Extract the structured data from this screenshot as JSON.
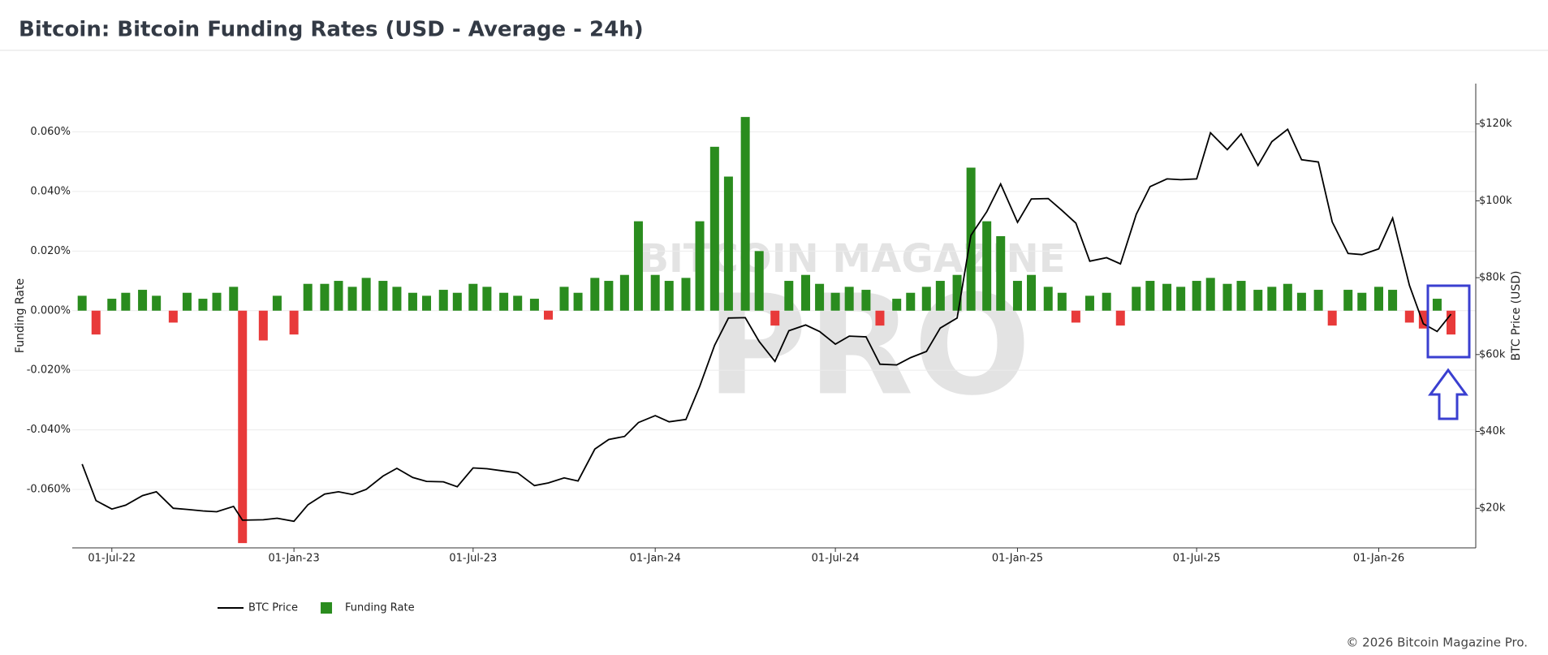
{
  "chart_data": {
    "type": "bar-line",
    "title": "Bitcoin: Bitcoin Funding Rates (USD - Average - 24h)",
    "ylabel": "Funding Rate",
    "y2label": "BTC Price (USD)",
    "watermark": [
      "BITCOIN MAGAZINE",
      "PRO"
    ],
    "copyright": "© 2026 Bitcoin Magazine Pro.",
    "grid": true,
    "legend": "bottom-left",
    "xlim": [
      "2022-05-22",
      "2026-04-09"
    ],
    "xticks": [
      {
        "value": "2022-07-01",
        "label": "01-Jul-22"
      },
      {
        "value": "2023-01-01",
        "label": "01-Jan-23"
      },
      {
        "value": "2023-07-01",
        "label": "01-Jul-23"
      },
      {
        "value": "2024-01-01",
        "label": "01-Jan-24"
      },
      {
        "value": "2024-07-01",
        "label": "01-Jul-24"
      },
      {
        "value": "2025-01-01",
        "label": "01-Jan-25"
      },
      {
        "value": "2025-07-01",
        "label": "01-Jul-25"
      },
      {
        "value": "2026-01-01",
        "label": "01-Jan-26"
      }
    ],
    "ylim": [
      -0.0796,
      0.0762
    ],
    "yticks": [
      {
        "value": -0.06,
        "label": "-0.060%"
      },
      {
        "value": -0.04,
        "label": "-0.040%"
      },
      {
        "value": -0.02,
        "label": "-0.020%"
      },
      {
        "value": 0,
        "label": "0.000%"
      },
      {
        "value": 0.02,
        "label": "0.020%"
      },
      {
        "value": 0.04,
        "label": "0.040%"
      },
      {
        "value": 0.06,
        "label": "0.060%"
      }
    ],
    "y2lim": [
      9700,
      130500
    ],
    "y2ticks": [
      {
        "value": 20000,
        "label": "$20k"
      },
      {
        "value": 40000,
        "label": "$40k"
      },
      {
        "value": 60000,
        "label": "$60k"
      },
      {
        "value": 80000,
        "label": "$80k"
      },
      {
        "value": 100000,
        "label": "$100k"
      },
      {
        "value": 120000,
        "label": "$120k"
      }
    ],
    "x": [
      "2022-06-01",
      "2022-06-15",
      "2022-07-01",
      "2022-07-15",
      "2022-08-01",
      "2022-08-15",
      "2022-09-01",
      "2022-09-15",
      "2022-10-01",
      "2022-10-15",
      "2022-11-01",
      "2022-11-10",
      "2022-12-01",
      "2022-12-15",
      "2023-01-01",
      "2023-01-15",
      "2023-02-01",
      "2023-02-15",
      "2023-03-01",
      "2023-03-15",
      "2023-04-01",
      "2023-04-15",
      "2023-05-01",
      "2023-05-15",
      "2023-06-01",
      "2023-06-15",
      "2023-07-01",
      "2023-07-15",
      "2023-08-01",
      "2023-08-15",
      "2023-09-01",
      "2023-09-15",
      "2023-10-01",
      "2023-10-15",
      "2023-11-01",
      "2023-11-15",
      "2023-12-01",
      "2023-12-15",
      "2024-01-01",
      "2024-01-15",
      "2024-02-01",
      "2024-02-15",
      "2024-03-01",
      "2024-03-15",
      "2024-04-01",
      "2024-04-15",
      "2024-05-01",
      "2024-05-15",
      "2024-06-01",
      "2024-06-15",
      "2024-07-01",
      "2024-07-15",
      "2024-08-01",
      "2024-08-15",
      "2024-09-01",
      "2024-09-15",
      "2024-10-01",
      "2024-10-15",
      "2024-11-01",
      "2024-11-15",
      "2024-12-01",
      "2024-12-15",
      "2025-01-01",
      "2025-01-15",
      "2025-02-01",
      "2025-02-15",
      "2025-03-01",
      "2025-03-15",
      "2025-04-01",
      "2025-04-15",
      "2025-05-01",
      "2025-05-15",
      "2025-06-01",
      "2025-06-15",
      "2025-07-01",
      "2025-07-15",
      "2025-08-01",
      "2025-08-15",
      "2025-09-01",
      "2025-09-15",
      "2025-10-01",
      "2025-10-15",
      "2025-11-01",
      "2025-11-15",
      "2025-12-01",
      "2025-12-15",
      "2026-01-01",
      "2026-01-15",
      "2026-02-01",
      "2026-02-15",
      "2026-03-01",
      "2026-03-15"
    ],
    "series": [
      {
        "name": "BTC Price",
        "type": "line",
        "axis": "y2",
        "color": "#000000",
        "values": [
          31500,
          22000,
          19800,
          20800,
          23300,
          24300,
          20000,
          19700,
          19300,
          19100,
          20500,
          16900,
          17000,
          17400,
          16600,
          20900,
          23700,
          24300,
          23600,
          24900,
          28400,
          30400,
          28000,
          27000,
          26900,
          25600,
          30500,
          30300,
          29700,
          29200,
          25900,
          26600,
          27900,
          27100,
          35400,
          37900,
          38700,
          42300,
          44100,
          42500,
          43100,
          51800,
          62400,
          69500,
          69600,
          63400,
          58200,
          66200,
          67700,
          66000,
          62700,
          64800,
          64600,
          57500,
          57300,
          59200,
          60800,
          66900,
          69500,
          91000,
          97200,
          104400,
          94400,
          100500,
          100600,
          97500,
          94200,
          84300,
          85200,
          83600,
          96500,
          103700,
          105700,
          105500,
          105700,
          117700,
          113300,
          117400,
          109200,
          115400,
          118600,
          110700,
          110100,
          94500,
          86300,
          86000,
          87500,
          95500,
          78000,
          68000,
          66000,
          70500
        ]
      },
      {
        "name": "Funding Rate",
        "type": "bar",
        "color": "#2a8c1e",
        "negative_color": "#e83a3a",
        "values": [
          0.005,
          -0.008,
          0.004,
          0.006,
          0.007,
          0.005,
          -0.004,
          0.006,
          0.004,
          0.006,
          0.008,
          -0.078,
          -0.01,
          0.005,
          -0.008,
          0.009,
          0.009,
          0.01,
          0.008,
          0.011,
          0.01,
          0.008,
          0.006,
          0.005,
          0.007,
          0.006,
          0.009,
          0.008,
          0.006,
          0.005,
          0.004,
          -0.003,
          0.008,
          0.006,
          0.011,
          0.01,
          0.012,
          0.03,
          0.012,
          0.01,
          0.011,
          0.03,
          0.055,
          0.045,
          0.065,
          0.02,
          -0.005,
          0.01,
          0.012,
          0.009,
          0.006,
          0.008,
          0.007,
          -0.005,
          0.004,
          0.006,
          0.008,
          0.01,
          0.012,
          0.048,
          0.03,
          0.025,
          0.01,
          0.012,
          0.008,
          0.006,
          -0.004,
          0.005,
          0.006,
          -0.005,
          0.008,
          0.01,
          0.009,
          0.008,
          0.01,
          0.011,
          0.009,
          0.01,
          0.007,
          0.008,
          0.009,
          0.006,
          0.007,
          -0.005,
          0.007,
          0.006,
          0.008,
          0.007,
          -0.004,
          -0.006,
          0.004,
          -0.008
        ]
      }
    ]
  }
}
